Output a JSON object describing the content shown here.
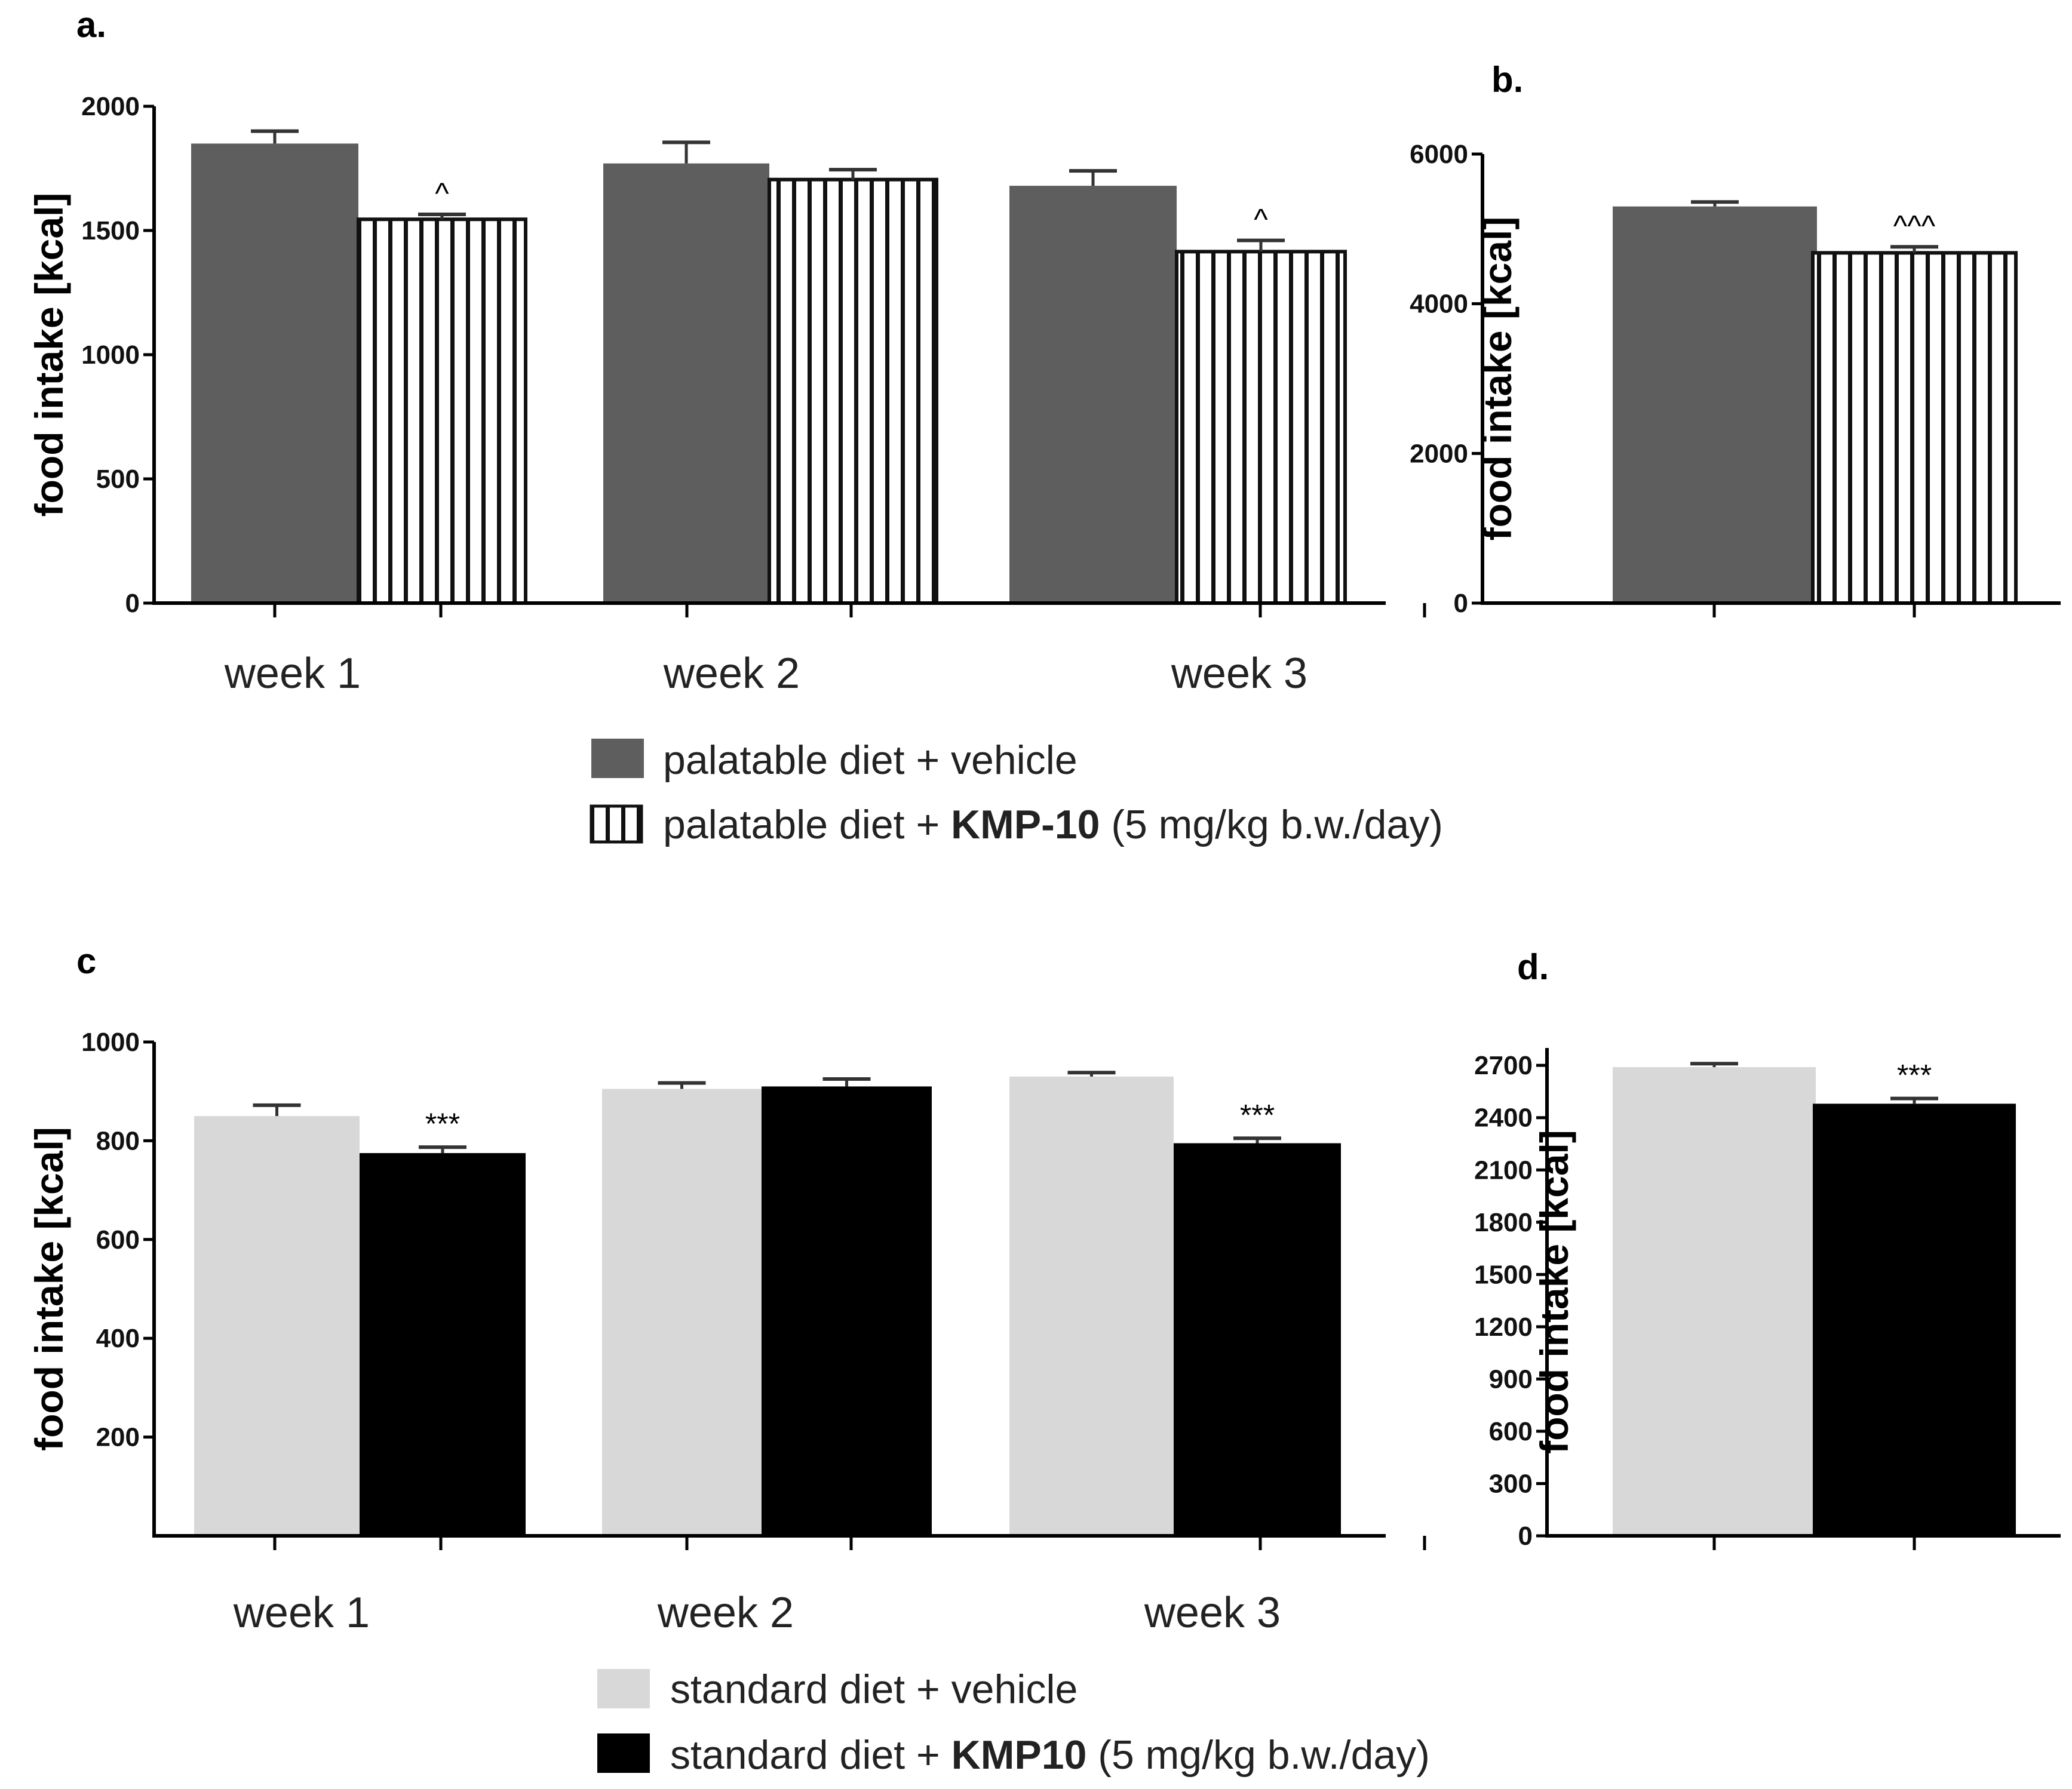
{
  "chart_data": [
    {
      "panel": "a.",
      "type": "bar",
      "ylabel": "food intake [kcal]",
      "ylim": [
        0,
        2000
      ],
      "yticks": [
        0,
        500,
        1000,
        1500,
        2000
      ],
      "categories": [
        "week 1",
        "week 2",
        "week 3"
      ],
      "series": [
        {
          "name": "palatable diet + vehicle",
          "values": [
            1850,
            1770,
            1680
          ],
          "errors": [
            50,
            85,
            60
          ],
          "fill": "#5e5e5e"
        },
        {
          "name": "palatable diet + KMP-10 (5 mg/kg b.w./day)",
          "values": [
            1545,
            1705,
            1415
          ],
          "errors": [
            20,
            40,
            45
          ],
          "fill": "hatch"
        }
      ],
      "annotations": [
        "^",
        "",
        "^"
      ]
    },
    {
      "panel": "b.",
      "type": "bar",
      "ylabel": "food intake [kcal]",
      "ylim": [
        0,
        6000
      ],
      "yticks": [
        0,
        2000,
        4000,
        6000
      ],
      "categories": [
        "",
        ""
      ],
      "values": [
        5300,
        4680
      ],
      "errors": [
        60,
        80
      ],
      "fills": [
        "#5e5e5e",
        "hatch"
      ],
      "annotations": [
        "",
        "^^^"
      ]
    },
    {
      "panel": "c",
      "type": "bar",
      "ylabel": "food intake [kcal]",
      "ylim": [
        0,
        1000
      ],
      "yticks": [
        200,
        400,
        600,
        800,
        1000
      ],
      "categories": [
        "week 1",
        "week 2",
        "week 3"
      ],
      "series": [
        {
          "name": "standard diet + vehicle",
          "values": [
            850,
            905,
            930
          ],
          "errors": [
            22,
            12,
            8
          ],
          "fill": "#d8d8d8"
        },
        {
          "name": "standard diet + KMP10 (5 mg/kg b.w./day)",
          "values": [
            775,
            910,
            795
          ],
          "errors": [
            12,
            15,
            10
          ],
          "fill": "#000000"
        }
      ],
      "annotations": [
        "***",
        "",
        "***"
      ]
    },
    {
      "panel": "d.",
      "type": "bar",
      "ylabel": "food intake [kcal]",
      "ylim": [
        0,
        2800
      ],
      "yticks": [
        0,
        300,
        600,
        900,
        1200,
        1500,
        1800,
        2100,
        2400,
        2700
      ],
      "categories": [
        "",
        ""
      ],
      "values": [
        2690,
        2480
      ],
      "errors": [
        20,
        30
      ],
      "fills": [
        "#d8d8d8",
        "#000000"
      ],
      "annotations": [
        "",
        "***"
      ]
    }
  ],
  "legend_top": {
    "item1": {
      "text": "palatable diet + vehicle"
    },
    "item2": {
      "prefix": "palatable diet + ",
      "bold": "KMP-10",
      "suffix": " (5 mg/kg b.w./day)"
    }
  },
  "legend_bottom": {
    "item1": {
      "text": "standard diet + vehicle"
    },
    "item2": {
      "prefix": "standard diet + ",
      "bold": "KMP10",
      "suffix": " (5 mg/kg b.w./day)"
    }
  }
}
